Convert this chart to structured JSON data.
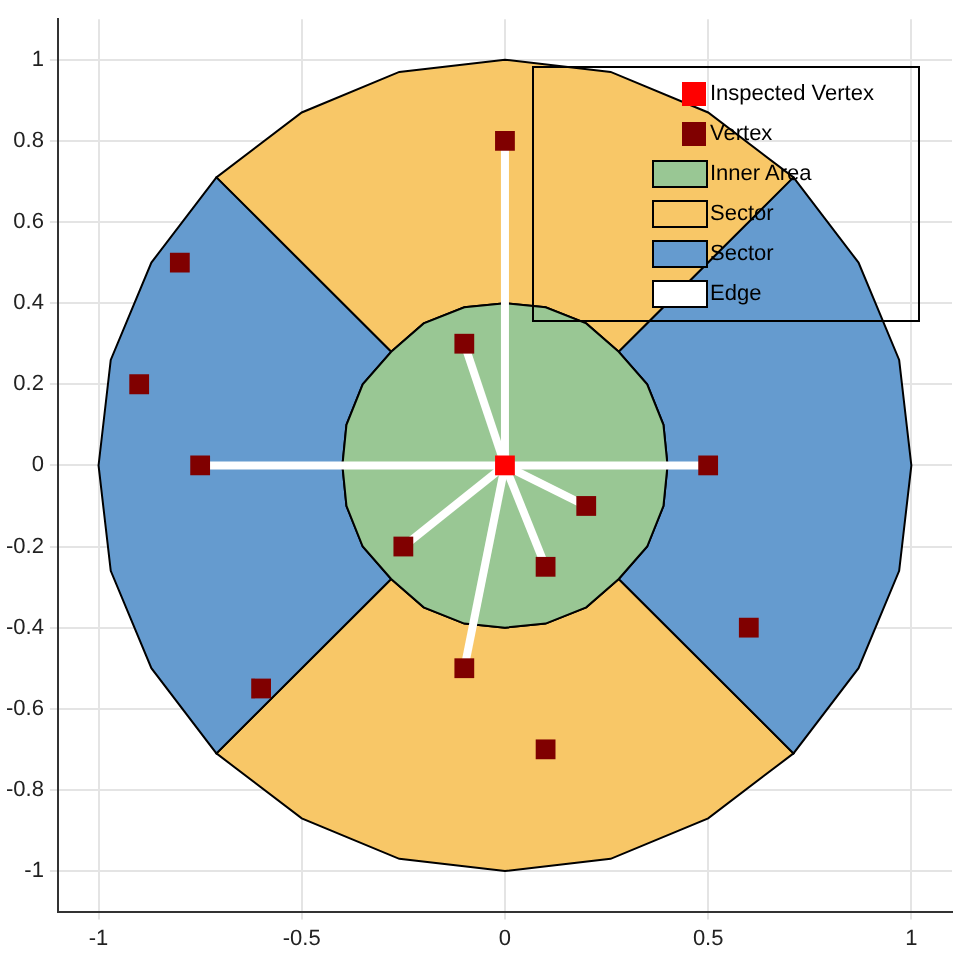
{
  "chart_data": {
    "type": "scatter",
    "xlim": [
      -1.1,
      1.1
    ],
    "ylim": [
      -1.1,
      1.1
    ],
    "xticks": [
      -1,
      -0.5,
      0,
      0.5,
      1
    ],
    "yticks": [
      -1,
      -0.8,
      -0.6,
      -0.4,
      -0.2,
      0,
      0.2,
      0.4,
      0.6,
      0.8,
      1
    ],
    "grid": true,
    "legend": "top right",
    "series": [
      {
        "name": "Inspected Vertex",
        "type": "scatter",
        "marker": "square",
        "color": "#ff0000",
        "x": [
          0
        ],
        "values": [
          0
        ]
      },
      {
        "name": "Vertex",
        "type": "scatter",
        "marker": "square",
        "color": "#800000",
        "x": [
          0,
          -0.1,
          -0.8,
          -0.9,
          -0.75,
          0.5,
          0.2,
          0.1,
          -0.25,
          -0.1,
          -0.6,
          0.1,
          0.6
        ],
        "values": [
          0.8,
          0.3,
          0.5,
          0.2,
          0,
          0,
          -0.1,
          -0.25,
          -0.2,
          -0.5,
          -0.55,
          -0.7,
          -0.4
        ]
      },
      {
        "name": "Inner Area",
        "type": "area",
        "color": "#99c794",
        "x": [
          0.4,
          0.39,
          0.35,
          0.28,
          0.2,
          0.1,
          0,
          -0.1,
          -0.2,
          -0.28,
          -0.35,
          -0.39,
          -0.4,
          -0.39,
          -0.35,
          -0.28,
          -0.2,
          -0.1,
          0,
          0.1,
          0.2,
          0.28,
          0.35,
          0.39
        ],
        "values": [
          0,
          0.1,
          0.2,
          0.28,
          0.35,
          0.39,
          0.4,
          0.39,
          0.35,
          0.28,
          0.2,
          0.1,
          0,
          -0.1,
          -0.2,
          -0.28,
          -0.35,
          -0.39,
          -0.4,
          -0.39,
          -0.35,
          -0.28,
          -0.2,
          -0.1
        ]
      },
      {
        "name": "Sector",
        "type": "area",
        "color": "#f8c767",
        "x": [
          0.71,
          0.5,
          0.26,
          0,
          -0.26,
          -0.5,
          -0.71,
          -0.28,
          -0.2,
          -0.1,
          0,
          0.1,
          0.2,
          0.28,
          null,
          0.71,
          0.5,
          0.26,
          0,
          -0.26,
          -0.5,
          -0.71,
          -0.28,
          -0.2,
          -0.1,
          0,
          0.1,
          0.2,
          0.28
        ],
        "values": [
          0.71,
          0.87,
          0.97,
          1,
          0.97,
          0.87,
          0.71,
          0.28,
          0.35,
          0.39,
          0.4,
          0.39,
          0.35,
          0.28,
          null,
          -0.71,
          -0.87,
          -0.97,
          -1,
          -0.97,
          -0.87,
          -0.71,
          -0.28,
          -0.35,
          -0.39,
          -0.4,
          -0.39,
          -0.35,
          -0.28
        ]
      },
      {
        "name": "Sector",
        "type": "area",
        "color": "#659bcf",
        "x": [
          -0.71,
          -0.87,
          -0.97,
          -1,
          -0.97,
          -0.87,
          -0.71,
          -0.28,
          -0.35,
          -0.39,
          -0.4,
          -0.39,
          -0.35,
          -0.28,
          null,
          0.71,
          0.87,
          0.97,
          1,
          0.97,
          0.87,
          0.71,
          0.28,
          0.35,
          0.39,
          0.4,
          0.39,
          0.35,
          0.28
        ],
        "values": [
          0.71,
          0.5,
          0.26,
          0,
          -0.26,
          -0.5,
          -0.71,
          -0.28,
          -0.2,
          -0.1,
          0,
          0.1,
          0.2,
          0.28,
          null,
          0.71,
          0.5,
          0.26,
          0,
          -0.26,
          -0.5,
          -0.71,
          -0.28,
          -0.2,
          -0.1,
          0,
          0.1,
          0.2,
          0.28
        ]
      },
      {
        "name": "Edge",
        "type": "line",
        "color": "#ffffff",
        "x": [
          0,
          0
        ],
        "values": [
          0,
          0.8
        ]
      },
      {
        "type": "line",
        "color": "#ffffff",
        "x": [
          0,
          -0.1
        ],
        "values": [
          0,
          0.3
        ]
      },
      {
        "type": "line",
        "color": "#ffffff",
        "x": [
          -0.75,
          0,
          0.5
        ],
        "values": [
          0,
          0,
          0
        ]
      },
      {
        "type": "line",
        "color": "#ffffff",
        "x": [
          0,
          0.2
        ],
        "values": [
          0,
          -0.1
        ]
      },
      {
        "type": "line",
        "color": "#ffffff",
        "x": [
          0,
          0.1
        ],
        "values": [
          0,
          -0.25
        ]
      },
      {
        "type": "line",
        "color": "#ffffff",
        "x": [
          0,
          -0.25
        ],
        "values": [
          0,
          -0.2
        ]
      },
      {
        "type": "line",
        "color": "#ffffff",
        "x": [
          0,
          -0.1
        ],
        "values": [
          0,
          -0.5
        ]
      }
    ]
  }
}
